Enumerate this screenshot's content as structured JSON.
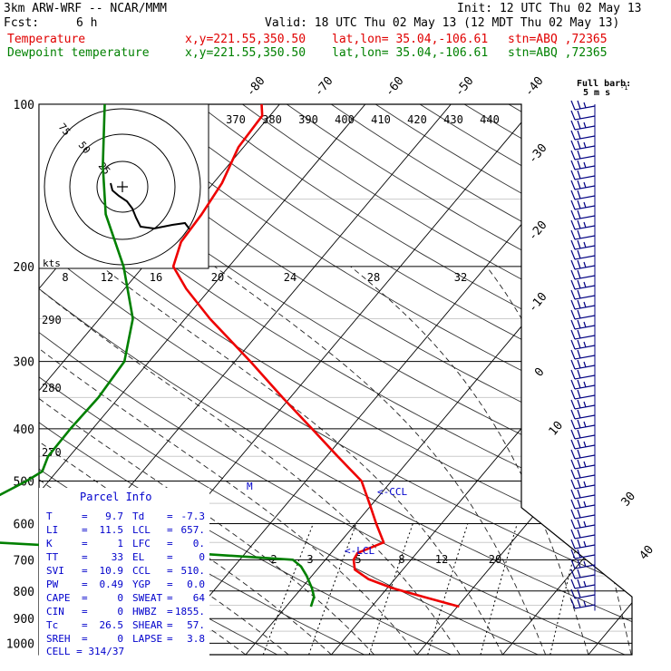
{
  "header": {
    "model": "3km ARW-WRF -- NCAR/MMM",
    "init": "Init: 12 UTC Thu 02 May 13",
    "fcst_label": "Fcst:",
    "fcst_value": "6 h",
    "valid": "Valid: 18 UTC Thu 02 May 13 (12 MDT Thu 02 May 13)",
    "temp_label": "Temperature",
    "dew_label": "Dewpoint temperature",
    "temp_xy": "x,y=221.55,350.50",
    "temp_latlon": "lat,lon= 35.04,-106.61",
    "temp_stn": "stn=ABQ ,72365",
    "dew_xy": "x,y=221.55,350.50",
    "dew_latlon": "lat,lon= 35.04,-106.61",
    "dew_stn": "stn=ABQ ,72365"
  },
  "barb_legend": {
    "line1": "Full barb:",
    "line2": "5 m s",
    "sup": "-1"
  },
  "hodograph": {
    "unit_label": "kts",
    "ring_labels": [
      "75",
      "50",
      "25"
    ],
    "speed_ticks": [
      "8",
      "12",
      "16",
      "20",
      "24",
      "28",
      "32"
    ]
  },
  "theta_labels": [
    "370",
    "380",
    "390",
    "400",
    "410",
    "420",
    "430",
    "440"
  ],
  "theta_lower_labels": [
    "290",
    "280",
    "270"
  ],
  "mixing_labels": [
    "2",
    "3",
    "5",
    "8",
    "12",
    "20"
  ],
  "lcl_label": "<-LCL",
  "ccl_label": "<-CCL",
  "m_label": "M",
  "parcel": {
    "title": "Parcel Info",
    "rows": [
      {
        "k1": "T",
        "v1": "9.7",
        "k2": "Td",
        "v2": "-7.3"
      },
      {
        "k1": "LI",
        "v1": "11.5",
        "k2": "LCL",
        "v2": "657."
      },
      {
        "k1": "K",
        "v1": "1",
        "k2": "LFC",
        "v2": "0."
      },
      {
        "k1": "TT",
        "v1": "33",
        "k2": "EL",
        "v2": "0"
      },
      {
        "k1": "SVI",
        "v1": "10.9",
        "k2": "CCL",
        "v2": "510."
      },
      {
        "k1": "PW",
        "v1": "0.49",
        "k2": "YGP",
        "v2": "0.0"
      },
      {
        "k1": "CAPE",
        "v1": "0",
        "k2": "SWEAT",
        "v2": "64"
      },
      {
        "k1": "CIN",
        "v1": "0",
        "k2": "HWBZ",
        "v2": "1855."
      },
      {
        "k1": "Tc",
        "v1": "26.5",
        "k2": "SHEAR",
        "v2": "57."
      },
      {
        "k1": "SREH",
        "v1": "0",
        "k2": "LAPSE",
        "v2": "3.8"
      }
    ],
    "cell": "CELL = 314/37"
  },
  "chart_data": {
    "type": "line",
    "subtype": "skew-T log-P sounding",
    "y_axis": {
      "scale": "log",
      "unit": "hPa",
      "range": [
        1000,
        100
      ],
      "ticks": [
        100,
        200,
        300,
        400,
        500,
        600,
        700,
        800,
        900,
        1000
      ]
    },
    "isotherm_labels": [
      -80,
      -70,
      -60,
      -50,
      -40,
      -30,
      -20,
      -10,
      0,
      10,
      30,
      40
    ],
    "series": [
      {
        "name": "Temperature",
        "color": "#ee0000",
        "p": [
          855,
          820,
          790,
          760,
          730,
          700,
          680,
          650,
          600,
          550,
          500,
          450,
          400,
          350,
          300,
          250,
          220,
          200,
          180,
          160,
          140,
          120,
          105,
          100
        ],
        "t": [
          10.2,
          5.1,
          0.6,
          -3.1,
          -5.6,
          -6.7,
          -6.9,
          -4.9,
          -7.6,
          -10.4,
          -13.5,
          -18.7,
          -24.4,
          -30.9,
          -38.2,
          -47.1,
          -52.8,
          -56.5,
          -58.0,
          -58.3,
          -59.0,
          -60.6,
          -60.9,
          -62.1
        ]
      },
      {
        "name": "Dewpoint temperature",
        "color": "#008000",
        "p": [
          855,
          820,
          790,
          750,
          720,
          700,
          680,
          650,
          620,
          600,
          580,
          555,
          530,
          500,
          480,
          450,
          400,
          350,
          300,
          250,
          200,
          160,
          130,
          100
        ],
        "t": [
          -7.1,
          -7.7,
          -8.8,
          -10.6,
          -12.2,
          -13.8,
          -26.7,
          -50.4,
          -56.5,
          -59.5,
          -57.6,
          -56.3,
          -54.3,
          -52.6,
          -51.7,
          -52.5,
          -52.6,
          -52.4,
          -52.9,
          -56.1,
          -62.3,
          -69.5,
          -74.6,
          -80.4
        ]
      }
    ],
    "wind_barbs": "right column, 100-870 hPa",
    "grid": true
  }
}
